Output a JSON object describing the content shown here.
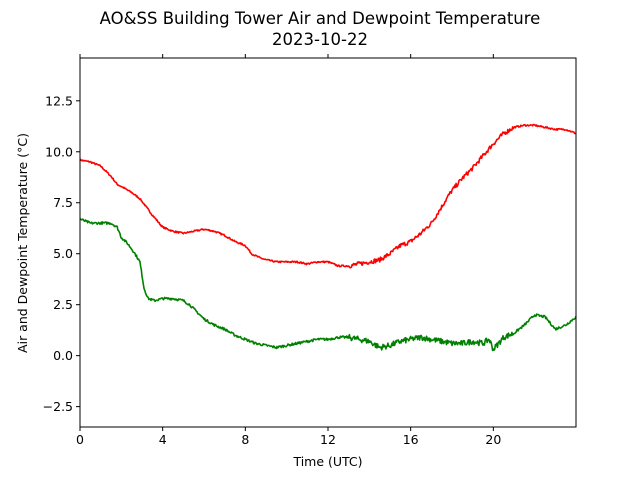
{
  "chart_data": {
    "type": "line",
    "title": "AO&SS Building Tower Air and Dewpoint Temperature",
    "subtitle": "2023-10-22",
    "xlabel": "Time (UTC)",
    "ylabel": "Air and Dewpoint Temperature (°C)",
    "xlim": [
      0,
      24
    ],
    "ylim": [
      -3.5,
      14.6
    ],
    "xticks": [
      0,
      4,
      8,
      12,
      16,
      20
    ],
    "xtick_labels": [
      "0",
      "4",
      "8",
      "12",
      "16",
      "20"
    ],
    "yticks": [
      -2.5,
      0.0,
      2.5,
      5.0,
      7.5,
      10.0,
      12.5
    ],
    "ytick_labels": [
      "−2.5",
      "0.0",
      "2.5",
      "5.0",
      "7.5",
      "10.0",
      "12.5"
    ],
    "grid": false,
    "series": [
      {
        "color": "#ff0000",
        "x": [
          0,
          0.5,
          1.0,
          1.5,
          1.8,
          2.0,
          2.5,
          2.9,
          3.2,
          3.5,
          4.0,
          4.5,
          5.0,
          5.5,
          6.0,
          6.5,
          7.0,
          7.5,
          8.0,
          8.3,
          8.7,
          9.0,
          9.5,
          10.0,
          10.5,
          11.0,
          11.5,
          12.0,
          12.5,
          13.0,
          13.5,
          14.0,
          14.5,
          15.0,
          15.5,
          16.0,
          16.5,
          17.0,
          17.5,
          17.8,
          18.0,
          18.5,
          19.0,
          19.5,
          20.0,
          20.5,
          21.0,
          21.5,
          22.0,
          22.5,
          23.0,
          23.5,
          24.0
        ],
        "y": [
          9.6,
          9.5,
          9.3,
          8.8,
          8.4,
          8.3,
          8.0,
          7.7,
          7.3,
          6.9,
          6.3,
          6.1,
          6.0,
          6.1,
          6.2,
          6.1,
          5.9,
          5.6,
          5.4,
          5.0,
          4.8,
          4.7,
          4.6,
          4.6,
          4.6,
          4.5,
          4.6,
          4.6,
          4.4,
          4.4,
          4.5,
          4.6,
          4.7,
          5.0,
          5.4,
          5.6,
          6.0,
          6.5,
          7.3,
          7.8,
          8.1,
          8.7,
          9.2,
          9.8,
          10.4,
          10.9,
          11.2,
          11.3,
          11.3,
          11.2,
          11.1,
          11.1,
          10.9
        ]
      },
      {
        "color": "#008000",
        "x": [
          0,
          0.5,
          1.0,
          1.5,
          1.8,
          2.0,
          2.3,
          2.6,
          2.9,
          3.1,
          3.3,
          3.6,
          4.0,
          4.5,
          5.0,
          5.3,
          5.6,
          6.0,
          6.5,
          7.0,
          7.5,
          8.0,
          8.5,
          9.0,
          9.5,
          10.0,
          10.5,
          11.0,
          11.5,
          12.0,
          12.5,
          13.0,
          13.5,
          14.0,
          14.5,
          15.0,
          15.5,
          16.0,
          16.5,
          17.0,
          17.5,
          18.0,
          18.5,
          19.0,
          19.5,
          19.8,
          20.0,
          20.5,
          21.0,
          21.5,
          22.0,
          22.5,
          23.0,
          23.5,
          24.0
        ],
        "y": [
          6.7,
          6.5,
          6.5,
          6.5,
          6.3,
          5.8,
          5.5,
          5.1,
          4.6,
          3.3,
          2.8,
          2.7,
          2.8,
          2.8,
          2.7,
          2.5,
          2.2,
          1.8,
          1.5,
          1.3,
          1.0,
          0.8,
          0.6,
          0.5,
          0.4,
          0.5,
          0.6,
          0.7,
          0.8,
          0.8,
          0.9,
          0.9,
          0.8,
          0.7,
          0.4,
          0.5,
          0.7,
          0.8,
          0.9,
          0.8,
          0.7,
          0.6,
          0.6,
          0.7,
          0.6,
          0.8,
          0.3,
          0.9,
          1.1,
          1.5,
          2.0,
          1.9,
          1.3,
          1.5,
          1.9
        ]
      }
    ]
  }
}
